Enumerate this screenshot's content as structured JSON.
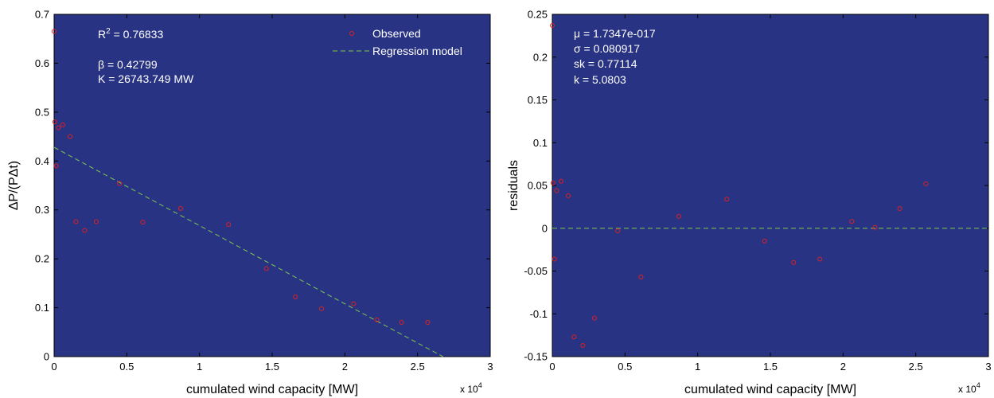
{
  "chart_data": [
    {
      "type": "scatter",
      "xlabel": "cumulated wind capacity [MW]",
      "ylabel": "ΔP/(PΔt)",
      "x_multiplier_label": "x 10",
      "x_multiplier_exp": "4",
      "xlim": [
        0,
        30000
      ],
      "ylim": [
        0,
        0.7
      ],
      "xticks": [
        0,
        5000,
        10000,
        15000,
        20000,
        25000,
        30000
      ],
      "xtick_labels": [
        "0",
        "0.5",
        "1",
        "1.5",
        "2",
        "2.5",
        "3"
      ],
      "yticks": [
        0,
        0.1,
        0.2,
        0.3,
        0.4,
        0.5,
        0.6,
        0.7
      ],
      "ytick_labels": [
        "0",
        "0.1",
        "0.2",
        "0.3",
        "0.4",
        "0.5",
        "0.6",
        "0.7"
      ],
      "grid": false,
      "legend_position": "top-right",
      "annotations": {
        "r2_prefix": "R",
        "r2_sup": "2",
        "r2_value": " = 0.76833",
        "beta_text": "β = 0.42799",
        "k_text": "K = 26743.749 MW"
      },
      "series": [
        {
          "name": "Observed",
          "style": "markers",
          "color": "#e02020",
          "x": [
            0,
            50,
            150,
            300,
            600,
            1100,
            1500,
            2100,
            2900,
            4500,
            6100,
            8700,
            12000,
            14600,
            16600,
            18400,
            20600,
            22200,
            23900,
            25700
          ],
          "y": [
            0.665,
            0.48,
            0.39,
            0.468,
            0.474,
            0.45,
            0.276,
            0.258,
            0.276,
            0.354,
            0.275,
            0.303,
            0.27,
            0.18,
            0.122,
            0.098,
            0.108,
            0.075,
            0.07,
            0.07
          ]
        },
        {
          "name": "Regression model",
          "style": "dashed-line",
          "color": "#7ec850",
          "x": [
            0,
            26744
          ],
          "y": [
            0.428,
            0
          ]
        }
      ]
    },
    {
      "type": "scatter",
      "xlabel": "cumulated wind capacity [MW]",
      "ylabel": "residuals",
      "x_multiplier_label": "x 10",
      "x_multiplier_exp": "4",
      "xlim": [
        0,
        30000
      ],
      "ylim": [
        -0.15,
        0.25
      ],
      "xticks": [
        0,
        5000,
        10000,
        15000,
        20000,
        25000,
        30000
      ],
      "xtick_labels": [
        "0",
        "0.5",
        "1",
        "1.5",
        "2",
        "2.5",
        "3"
      ],
      "yticks": [
        -0.15,
        -0.1,
        -0.05,
        0,
        0.05,
        0.1,
        0.15,
        0.2,
        0.25
      ],
      "ytick_labels": [
        "-0.15",
        "-0.1",
        "-0.05",
        "0",
        "0.05",
        "0.1",
        "0.15",
        "0.2",
        "0.25"
      ],
      "grid": false,
      "annotations": {
        "mu_text": "μ = 1.7347e-017",
        "sigma_text": "σ = 0.080917",
        "sk_text": "sk = 0.77114",
        "k_text": "k = 5.0803"
      },
      "series": [
        {
          "style": "markers",
          "color": "#e02020",
          "x": [
            0,
            50,
            150,
            300,
            600,
            1100,
            1500,
            2100,
            2900,
            4500,
            6100,
            8700,
            12000,
            14600,
            16600,
            18400,
            20600,
            22200,
            23900,
            25700
          ],
          "y": [
            0.237,
            0.053,
            -0.036,
            0.044,
            0.055,
            0.038,
            -0.127,
            -0.137,
            -0.105,
            -0.003,
            -0.057,
            0.014,
            0.034,
            -0.015,
            -0.04,
            -0.036,
            0.008,
            0.001,
            0.023,
            0.052
          ]
        },
        {
          "style": "dashed-line",
          "color": "#7ec850",
          "x": [
            0,
            30000
          ],
          "y": [
            0,
            0
          ]
        }
      ]
    }
  ]
}
